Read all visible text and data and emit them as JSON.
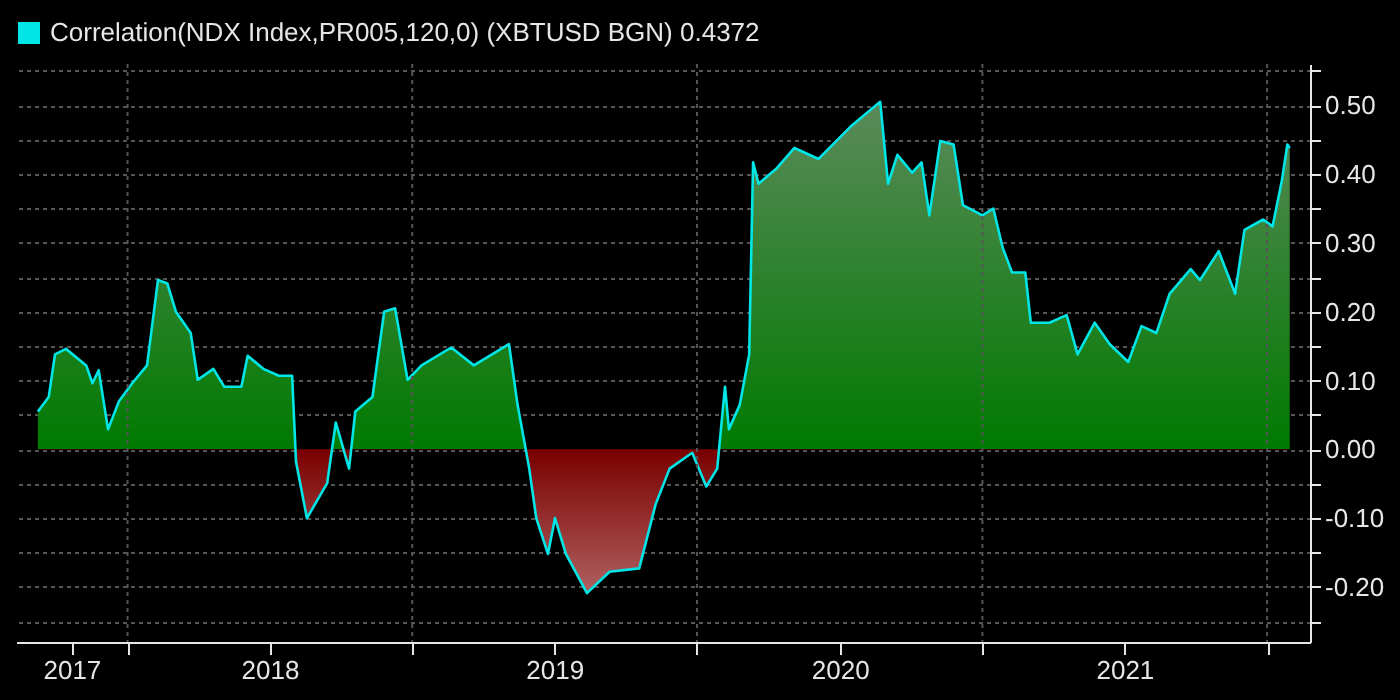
{
  "chart_data": {
    "type": "area",
    "x": [
      "2017-09-08",
      "2017-09-22",
      "2017-09-30",
      "2017-10-14",
      "2017-11-09",
      "2017-11-17",
      "2017-11-25",
      "2017-12-07",
      "2017-12-21",
      "2018-01-07",
      "2018-01-26",
      "2018-02-09",
      "2018-02-21",
      "2018-03-04",
      "2018-03-23",
      "2018-04-01",
      "2018-04-21",
      "2018-05-05",
      "2018-05-27",
      "2018-06-04",
      "2018-06-24",
      "2018-07-14",
      "2018-07-31",
      "2018-08-05",
      "2018-08-19",
      "2018-09-14",
      "2018-09-25",
      "2018-10-12",
      "2018-10-20",
      "2018-11-11",
      "2018-11-26",
      "2018-12-10",
      "2018-12-26",
      "2019-01-13",
      "2019-02-20",
      "2019-03-21",
      "2019-05-05",
      "2019-05-16",
      "2019-05-31",
      "2019-06-09",
      "2019-06-24",
      "2019-07-03",
      "2019-07-17",
      "2019-08-13",
      "2019-09-11",
      "2019-10-19",
      "2019-11-09",
      "2019-11-27",
      "2019-12-26",
      "2020-01-13",
      "2020-01-27",
      "2020-02-06",
      "2020-02-11",
      "2020-02-25",
      "2020-03-08",
      "2020-03-13",
      "2020-03-20",
      "2020-04-11",
      "2020-05-05",
      "2020-06-05",
      "2020-07-16",
      "2020-08-23",
      "2020-09-02",
      "2020-09-14",
      "2020-10-03",
      "2020-10-15",
      "2020-10-25",
      "2020-11-08",
      "2020-11-25",
      "2020-12-07",
      "2021-01-01",
      "2021-01-15",
      "2021-01-27",
      "2021-02-08",
      "2021-02-25",
      "2021-03-04",
      "2021-03-28",
      "2021-04-19",
      "2021-05-03",
      "2021-05-25",
      "2021-06-13",
      "2021-07-07",
      "2021-07-24",
      "2021-08-12",
      "2021-08-29",
      "2021-09-25",
      "2021-10-07",
      "2021-10-31",
      "2021-11-21",
      "2021-12-03",
      "2021-12-27",
      "2022-01-08",
      "2022-01-20",
      "2022-01-27",
      "2022-01-30"
    ],
    "series": [
      {
        "name": "Correlation(NDX Index,PR005,120,0) (XBTUSD BGN) 0.4372",
        "color": "#00e5e5",
        "values": [
          0.055,
          0.076,
          0.138,
          0.146,
          0.122,
          0.096,
          0.115,
          0.029,
          0.07,
          0.096,
          0.122,
          0.246,
          0.241,
          0.2,
          0.169,
          0.101,
          0.117,
          0.091,
          0.091,
          0.136,
          0.117,
          0.107,
          0.107,
          -0.018,
          -0.1,
          -0.049,
          0.039,
          -0.028,
          0.055,
          0.076,
          0.2,
          0.205,
          0.101,
          0.122,
          0.148,
          0.122,
          0.153,
          0.065,
          -0.028,
          -0.1,
          -0.152,
          -0.1,
          -0.152,
          -0.209,
          -0.178,
          -0.173,
          -0.08,
          -0.028,
          -0.005,
          -0.054,
          -0.028,
          0.091,
          0.029,
          0.065,
          0.138,
          0.417,
          0.386,
          0.407,
          0.438,
          0.422,
          0.469,
          0.505,
          0.386,
          0.428,
          0.402,
          0.417,
          0.34,
          0.448,
          0.443,
          0.355,
          0.34,
          0.35,
          0.293,
          0.257,
          0.257,
          0.184,
          0.184,
          0.195,
          0.138,
          0.184,
          0.153,
          0.127,
          0.179,
          0.169,
          0.226,
          0.262,
          0.246,
          0.288,
          0.226,
          0.319,
          0.334,
          0.324,
          0.391,
          0.443,
          0.438
        ]
      }
    ],
    "xlim": [
      "2017-08-11",
      "2022-02-25"
    ],
    "xticks": [
      {
        "value": "2017-10-21",
        "label": "2017"
      },
      {
        "value": "2018-01-01",
        "label": null
      },
      {
        "value": "2018-07-02",
        "label": "2018"
      },
      {
        "value": "2019-01-01",
        "label": null
      },
      {
        "value": "2019-07-02",
        "label": "2019"
      },
      {
        "value": "2020-01-01",
        "label": null
      },
      {
        "value": "2020-07-02",
        "label": "2020"
      },
      {
        "value": "2021-01-01",
        "label": null
      },
      {
        "value": "2021-07-02",
        "label": "2021"
      },
      {
        "value": "2022-01-01",
        "label": null
      }
    ],
    "ylim": [
      -0.28,
      0.56
    ],
    "yticks": [
      {
        "value": -0.25,
        "label": null
      },
      {
        "value": -0.2,
        "label": "-0.20"
      },
      {
        "value": -0.15,
        "label": null
      },
      {
        "value": -0.1,
        "label": "-0.10"
      },
      {
        "value": -0.05,
        "label": null
      },
      {
        "value": 0,
        "label": "0.00"
      },
      {
        "value": 0.05,
        "label": null
      },
      {
        "value": 0.1,
        "label": "0.10"
      },
      {
        "value": 0.15,
        "label": null
      },
      {
        "value": 0.2,
        "label": "0.20"
      },
      {
        "value": 0.25,
        "label": null
      },
      {
        "value": 0.3,
        "label": "0.30"
      },
      {
        "value": 0.35,
        "label": null
      },
      {
        "value": 0.4,
        "label": "0.40"
      },
      {
        "value": 0.45,
        "label": null
      },
      {
        "value": 0.5,
        "label": "0.50"
      },
      {
        "value": 0.55,
        "label": null
      }
    ],
    "grid": true,
    "legend": "top left"
  }
}
